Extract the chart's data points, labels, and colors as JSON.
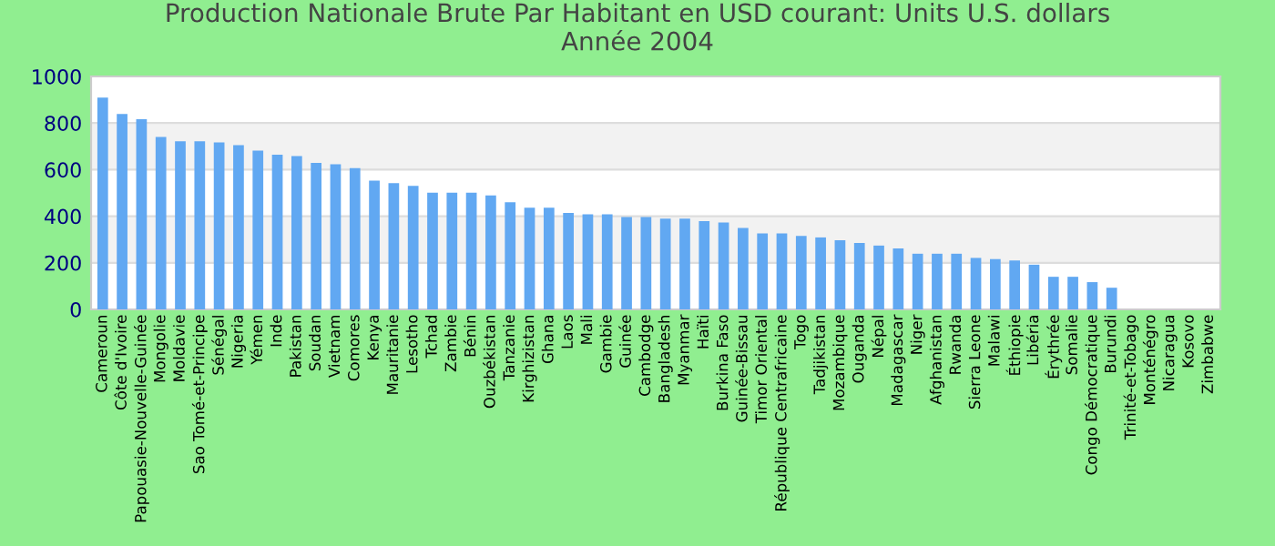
{
  "chart_data": {
    "type": "bar",
    "title": "Production Nationale Brute Par Habitant en USD courant: Units U.S. dollars\nAnnée 2004",
    "categories": [
      "Cameroun",
      "Côte d'Ivoire",
      "Papouasie-Nouvelle-Guinée",
      "Mongolie",
      "Moldavie",
      "Sao Tomé-et-Principe",
      "Sénégal",
      "Nigeria",
      "Yémen",
      "Inde",
      "Pakistan",
      "Soudan",
      "Vietnam",
      "Comores",
      "Kenya",
      "Mauritanie",
      "Lesotho",
      "Tchad",
      "Zambie",
      "Bénin",
      "Ouzbékistan",
      "Tanzanie",
      "Kirghizistan",
      "Ghana",
      "Laos",
      "Mali",
      "Gambie",
      "Guinée",
      "Cambodge",
      "Bangladesh",
      "Myanmar",
      "Haïti",
      "Burkina Faso",
      "Guinée-Bissau",
      "Timor Oriental",
      "République Centrafricaine",
      "Togo",
      "Tadjikistan",
      "Mozambique",
      "Ouganda",
      "Népal",
      "Madagascar",
      "Niger",
      "Afghanistan",
      "Rwanda",
      "Sierra Leone",
      "Malawi",
      "Éthiopie",
      "Libéria",
      "Érythrée",
      "Somalie",
      "Congo Démocratique",
      "Burundi",
      "Trinité-et-Tobago",
      "Monténégro",
      "Nicaragua",
      "Kosovo",
      "Zimbabwe"
    ],
    "values": [
      909,
      839,
      816,
      740,
      722,
      722,
      717,
      705,
      682,
      664,
      658,
      629,
      623,
      606,
      553,
      542,
      530,
      501,
      501,
      501,
      489,
      460,
      437,
      437,
      414,
      408,
      408,
      396,
      396,
      390,
      390,
      379,
      373,
      350,
      326,
      326,
      315,
      309,
      297,
      285,
      274,
      262,
      239,
      239,
      239,
      221,
      216,
      210,
      192,
      140,
      140,
      117,
      93,
      null,
      null,
      null,
      null,
      null
    ],
    "color": "#61a8f2",
    "ylim": [
      0,
      1000
    ],
    "yticks": [
      0,
      200,
      400,
      600,
      800,
      1000
    ],
    "grid": "y"
  }
}
